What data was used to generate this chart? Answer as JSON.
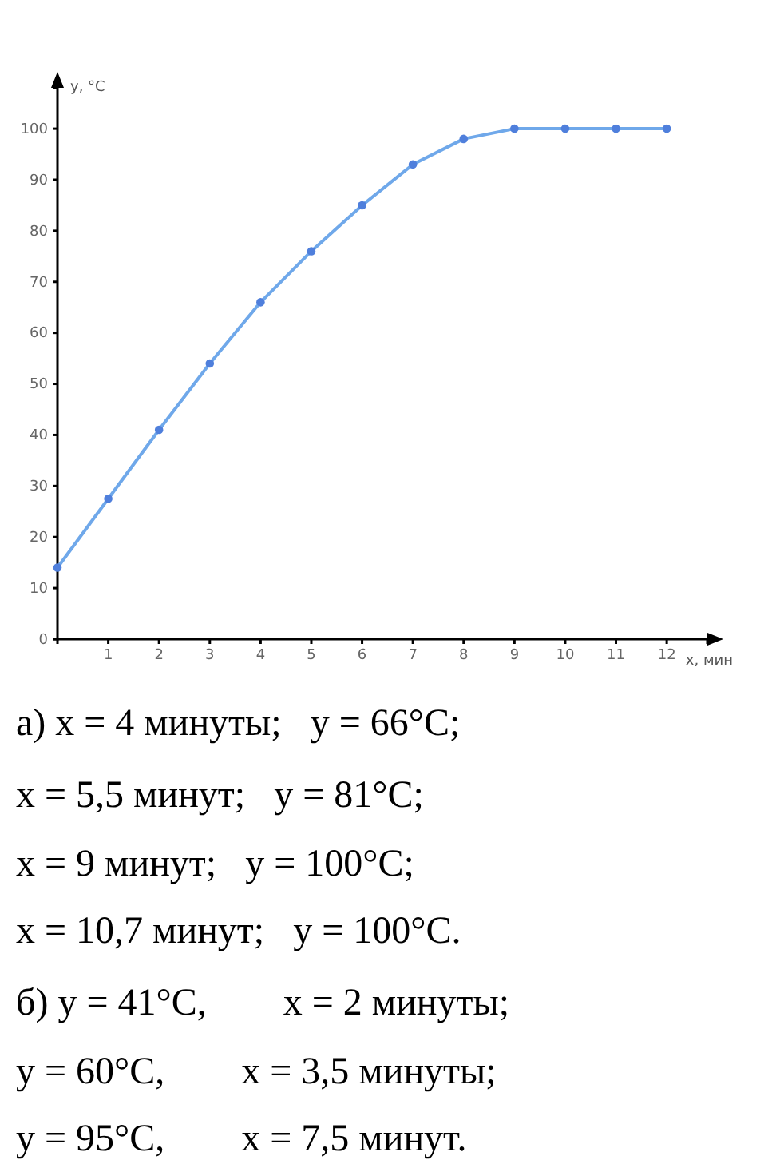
{
  "chart_data": {
    "type": "line",
    "xlabel": "x, мин",
    "ylabel": "y, °C",
    "x": [
      0,
      1,
      2,
      3,
      4,
      5,
      6,
      7,
      8,
      9,
      10,
      11,
      12
    ],
    "series": [
      {
        "color": "#4f7fdc",
        "values": [
          14,
          27.5,
          41,
          54,
          66,
          76,
          85,
          93,
          98,
          100,
          100,
          100,
          100
        ]
      }
    ],
    "xlim": [
      0,
      12.8
    ],
    "ylim": [
      0,
      108
    ],
    "xticks": [
      1,
      2,
      3,
      4,
      5,
      6,
      7,
      8,
      9,
      10,
      11,
      12
    ],
    "yticks": [
      0,
      10,
      20,
      30,
      40,
      50,
      60,
      70,
      80,
      90,
      100
    ],
    "grid": false,
    "marker": "circle",
    "line_style": "solid",
    "annotations": [
      "а) x = 4 минуты;   y = 66°C;",
      "x = 5,5 минут;   y = 81°C;",
      "x = 9 минут;   y = 100°C;",
      "x = 10,7 минут;   y = 100°C.",
      "б) y = 41°C,        x = 2 минуты;",
      "y = 60°C,        x = 3,5 минуты;",
      "y = 95°C,        x = 7,5 минут."
    ]
  }
}
